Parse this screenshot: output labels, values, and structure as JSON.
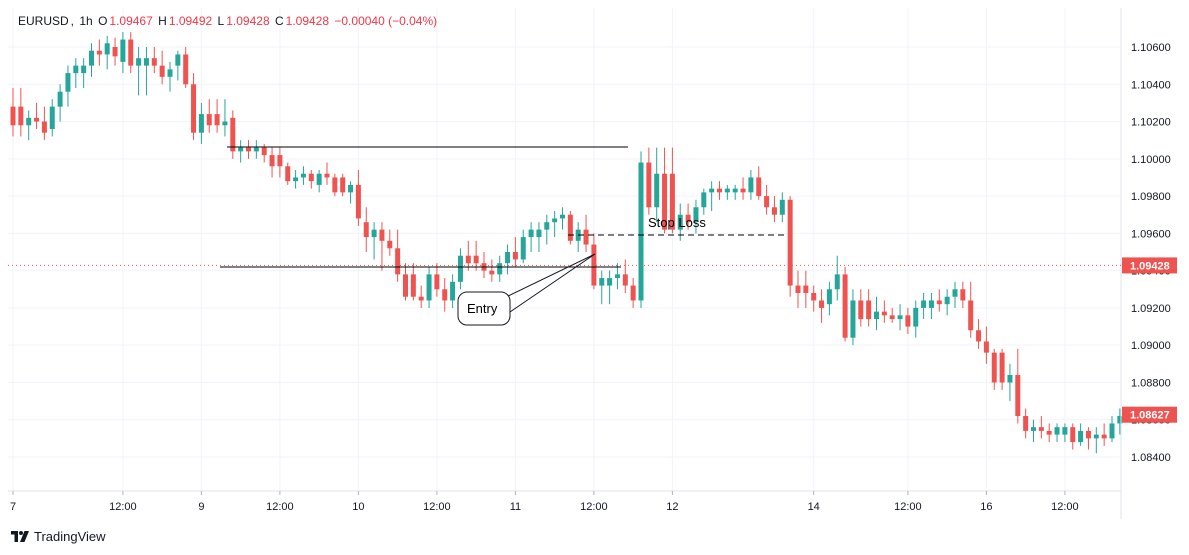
{
  "header": {
    "symbol": "EURUSD",
    "interval": "1h",
    "open_label": "O",
    "open": "1.09467",
    "high_label": "H",
    "high": "1.09492",
    "low_label": "L",
    "low": "1.09428",
    "close_label": "C",
    "close": "1.09428",
    "change": "−0.00040 (−0.04%)"
  },
  "brand": {
    "name": "TradingView",
    "icon": "tradingview-logo-icon"
  },
  "colors": {
    "up": "#26a69a",
    "down": "#ef5350",
    "grid": "#f0f3fa",
    "axis_text": "#131722",
    "price_line": "#ef5350",
    "annotation": "#000000"
  },
  "annotations": {
    "stop_loss_label": "Stop Loss",
    "entry_label": "Entry",
    "resistance_level": 1.10062,
    "support_level": 1.09419,
    "stop_loss_level": 1.09588,
    "entry_price": 1.09488
  },
  "price_tags": [
    {
      "value": "1.09428",
      "price": 1.09428
    },
    {
      "value": "1.08627",
      "price": 1.08627
    }
  ],
  "chart_data": {
    "type": "candlestick",
    "title": "EURUSD, 1h",
    "xlabel": "",
    "ylabel": "",
    "ylim": [
      1.0825,
      1.1075
    ],
    "yticks": [
      "1.10600",
      "1.10400",
      "1.10200",
      "1.10000",
      "1.09800",
      "1.09600",
      "1.09400",
      "1.09200",
      "1.09000",
      "1.08800",
      "1.08600",
      "1.08400"
    ],
    "xtick_labels": [
      "7",
      "12:00",
      "9",
      "12:00",
      "10",
      "12:00",
      "11",
      "12:00",
      "12",
      "14",
      "12:00",
      "16",
      "12:00"
    ],
    "xtick_bars": [
      0,
      14,
      24,
      34,
      44,
      54,
      64,
      74,
      84,
      102,
      114,
      124,
      134
    ],
    "grid": true,
    "bar_count": 142,
    "candles": [
      [
        1.1028,
        1.1038,
        1.1012,
        1.1018
      ],
      [
        1.1018,
        1.1026,
        1.101,
        1.1022
      ],
      [
        1.1022,
        1.103,
        1.1016,
        1.102
      ],
      [
        1.102,
        1.1028,
        1.101,
        1.1014
      ],
      [
        1.1016,
        1.1032,
        1.1012,
        1.1028
      ],
      [
        1.1028,
        1.104,
        1.102,
        1.1036
      ],
      [
        1.1036,
        1.105,
        1.1028,
        1.1046
      ],
      [
        1.1046,
        1.1054,
        1.1038,
        1.105
      ],
      [
        1.105,
        1.1062,
        1.1044,
        1.1058
      ],
      [
        1.1058,
        1.1064,
        1.105,
        1.1056
      ],
      [
        1.1056,
        1.1066,
        1.1048,
        1.1062
      ],
      [
        1.106,
        1.1065,
        1.105,
        1.1055
      ],
      [
        1.1052,
        1.1068,
        1.1046,
        1.1064
      ],
      [
        1.1064,
        1.1068,
        1.1046,
        1.105
      ],
      [
        1.105,
        1.106,
        1.1034,
        1.1054
      ],
      [
        1.1054,
        1.106,
        1.1046,
        1.105
      ],
      [
        1.105,
        1.1058,
        1.104,
        1.1044
      ],
      [
        1.1044,
        1.1052,
        1.1036,
        1.1048
      ],
      [
        1.105,
        1.1058,
        1.1042,
        1.1056
      ],
      [
        1.1056,
        1.106,
        1.1038,
        1.104
      ],
      [
        1.104,
        1.1046,
        1.101,
        1.1014
      ],
      [
        1.1014,
        1.103,
        1.1008,
        1.1024
      ],
      [
        1.1024,
        1.1032,
        1.1014,
        1.1018
      ],
      [
        1.1018,
        1.1032,
        1.1012,
        1.102
      ],
      [
        1.1022,
        1.1026,
        1.1,
        1.1004
      ],
      [
        1.1004,
        1.101,
        1.0998,
        1.1006
      ],
      [
        1.1006,
        1.101,
        1.1,
        1.1004
      ],
      [
        1.1004,
        1.101,
        1.1,
        1.1006
      ],
      [
        1.1006,
        1.1008,
        1.0998,
        1.1002
      ],
      [
        1.1002,
        1.1006,
        1.099,
        1.0996
      ],
      [
        1.0996,
        1.0998,
        1.0986,
        1.0988
      ],
      [
        1.0988,
        1.0994,
        1.0984,
        1.099
      ],
      [
        1.099,
        1.0996,
        1.0986,
        1.0992
      ],
      [
        1.0992,
        1.0994,
        1.0984,
        1.0988
      ],
      [
        1.0986,
        1.0994,
        1.0982,
        1.0992
      ],
      [
        1.0992,
        1.0998,
        1.0986,
        1.099
      ],
      [
        1.099,
        1.0992,
        1.098,
        1.0982
      ],
      [
        1.0982,
        1.0988,
        1.0976,
        1.0986
      ],
      [
        1.0986,
        1.0994,
        1.0964,
        1.0968
      ],
      [
        1.0966,
        1.0974,
        1.095,
        1.0958
      ],
      [
        1.0958,
        1.0966,
        1.0946,
        1.0962
      ],
      [
        1.0962,
        1.0966,
        1.094,
        1.0956
      ],
      [
        1.0956,
        1.0962,
        1.0948,
        1.0952
      ],
      [
        1.0952,
        1.0962,
        1.0934,
        1.0938
      ],
      [
        1.0938,
        1.0944,
        1.0924,
        1.0926
      ],
      [
        1.0926,
        1.0932,
        1.092,
        1.0924
      ],
      [
        1.0924,
        1.0942,
        1.092,
        1.0938
      ],
      [
        1.0938,
        1.0944,
        1.0926,
        1.093
      ],
      [
        1.093,
        1.0936,
        1.0918,
        1.0924
      ],
      [
        1.0924,
        1.0938,
        1.092,
        1.0934
      ],
      [
        1.0934,
        1.0952,
        1.093,
        1.0948
      ],
      [
        1.0948,
        1.0956,
        1.094,
        1.0944
      ],
      [
        1.0944,
        1.095,
        1.0936,
        1.094
      ],
      [
        1.094,
        1.0946,
        1.0934,
        1.0938
      ],
      [
        1.0938,
        1.0948,
        1.0934,
        1.0944
      ],
      [
        1.0944,
        1.0954,
        1.0938,
        1.095
      ],
      [
        1.095,
        1.0958,
        1.0942,
        1.0946
      ],
      [
        1.0946,
        1.0962,
        1.0944,
        1.0958
      ],
      [
        1.0958,
        1.0966,
        1.095,
        1.0962
      ],
      [
        1.0962,
        1.097,
        1.0954,
        1.0966
      ],
      [
        1.0966,
        1.0972,
        1.0958,
        1.0968
      ],
      [
        1.0968,
        1.0974,
        1.0962,
        1.097
      ],
      [
        1.097,
        1.0972,
        1.0954,
        1.0956
      ],
      [
        1.0956,
        1.0966,
        1.095,
        1.0962
      ],
      [
        1.0962,
        1.097,
        1.095,
        1.0954
      ],
      [
        1.0954,
        1.096,
        1.093,
        1.0932
      ],
      [
        1.0932,
        1.094,
        1.0922,
        1.0936
      ],
      [
        1.0936,
        1.0944,
        1.093,
        1.0938
      ],
      [
        1.0938,
        1.0946,
        1.0928,
        1.0932
      ],
      [
        1.0932,
        1.0936,
        1.092,
        1.0924
      ],
      [
        1.0924,
        1.1004,
        1.092,
        1.0998
      ],
      [
        1.0998,
        1.1006,
        1.097,
        1.0974
      ],
      [
        1.0974,
        1.1006,
        1.0966,
        1.0992
      ],
      [
        1.0992,
        1.1006,
        1.096,
        1.0962
      ],
      [
        1.0962,
        1.0976,
        1.0956,
        1.097
      ],
      [
        1.097,
        1.0976,
        1.0962,
        1.0966
      ],
      [
        1.0966,
        1.0978,
        1.096,
        1.0974
      ],
      [
        1.0974,
        1.0984,
        1.097,
        1.0982
      ],
      [
        1.0982,
        1.0988,
        1.0972,
        1.0984
      ],
      [
        1.0984,
        1.0988,
        1.0978,
        1.0982
      ],
      [
        1.0982,
        1.0986,
        1.0978,
        1.0984
      ],
      [
        1.0984,
        1.099,
        1.0978,
        1.0982
      ],
      [
        1.0982,
        1.0994,
        1.0978,
        1.099
      ],
      [
        1.099,
        1.0996,
        1.0978,
        1.098
      ],
      [
        1.098,
        1.0986,
        1.097,
        1.0974
      ],
      [
        1.0974,
        1.098,
        1.0966,
        1.097
      ],
      [
        1.097,
        1.0982,
        1.0966,
        1.0978
      ],
      [
        1.0978,
        1.098,
        1.0926,
        1.0932
      ],
      [
        1.0932,
        1.094,
        1.092,
        1.0928
      ],
      [
        1.0928,
        1.0932,
        1.0918,
        1.0924
      ],
      [
        1.0924,
        1.093,
        1.0912,
        1.092
      ],
      [
        1.0922,
        1.0934,
        1.0916,
        1.093
      ],
      [
        1.093,
        1.0948,
        1.0924,
        1.0938
      ],
      [
        1.0938,
        1.0942,
        1.0902,
        1.0904
      ],
      [
        1.0904,
        1.093,
        1.09,
        1.0924
      ],
      [
        1.0924,
        1.093,
        1.091,
        1.0914
      ],
      [
        1.0914,
        1.0926,
        1.0908,
        1.0918
      ],
      [
        1.0918,
        1.0924,
        1.0912,
        1.0916
      ],
      [
        1.0916,
        1.092,
        1.0912,
        1.0914
      ],
      [
        1.0914,
        1.0922,
        1.0908,
        1.0916
      ],
      [
        1.0916,
        1.092,
        1.0906,
        1.091
      ],
      [
        1.091,
        1.0924,
        1.0904,
        1.092
      ],
      [
        1.092,
        1.0928,
        1.0914,
        1.0924
      ],
      [
        1.0924,
        1.093,
        1.0918,
        1.0922
      ],
      [
        1.0922,
        1.093,
        1.0916,
        1.0926
      ],
      [
        1.0926,
        1.0934,
        1.092,
        1.093
      ],
      [
        1.093,
        1.0934,
        1.092,
        1.0924
      ],
      [
        1.0924,
        1.0934,
        1.0904,
        1.0908
      ],
      [
        1.0908,
        1.0914,
        1.0898,
        1.0902
      ],
      [
        1.0902,
        1.091,
        1.089,
        1.0896
      ],
      [
        1.0896,
        1.0898,
        1.0876,
        1.088
      ],
      [
        1.088,
        1.089,
        1.087,
        1.0884
      ],
      [
        1.0884,
        1.0898,
        1.0858,
        1.0862
      ],
      [
        1.0862,
        1.0866,
        1.085,
        1.0854
      ],
      [
        1.0854,
        1.086,
        1.0848,
        1.0856
      ],
      [
        1.0856,
        1.0862,
        1.085,
        1.0854
      ],
      [
        1.0854,
        1.0858,
        1.0848,
        1.0852
      ],
      [
        1.0852,
        1.0858,
        1.0848,
        1.0856
      ],
      [
        1.0856,
        1.0858,
        1.0844,
        1.0848
      ],
      [
        1.0848,
        1.0858,
        1.0846,
        1.0854
      ],
      [
        1.0854,
        1.0856,
        1.0844,
        1.085
      ],
      [
        1.085,
        1.0856,
        1.0842,
        1.0852
      ],
      [
        1.0852,
        1.0858,
        1.0846,
        1.085
      ],
      [
        1.085,
        1.0862,
        1.0848,
        1.0858
      ],
      [
        1.0858,
        1.0866,
        1.0852,
        1.0862
      ]
    ]
  }
}
